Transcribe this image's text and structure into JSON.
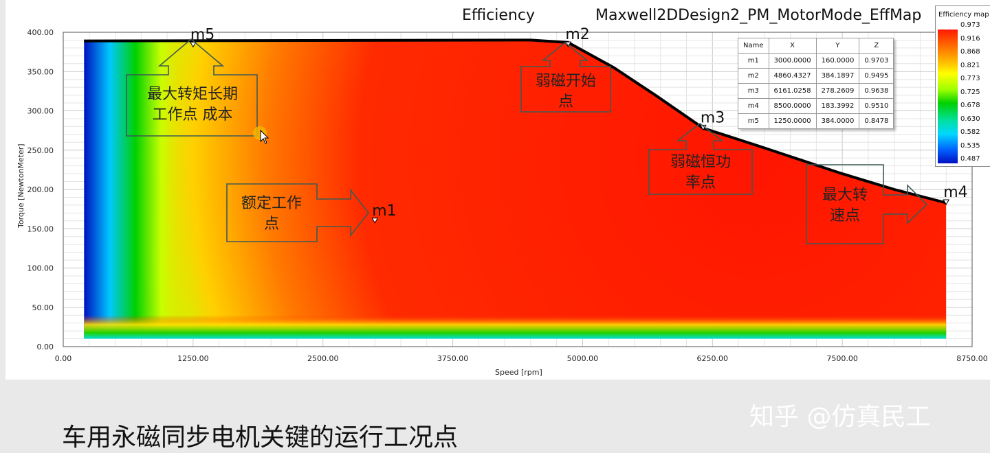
{
  "chart_data": {
    "type": "heatmap",
    "title": "Efficiency",
    "design_title": "Maxwell2DDesign2_PM_MotorMode_EffMap",
    "xlabel": "Speed [rpm]",
    "ylabel": "Torque [NewtonMeter]",
    "xlim": [
      0,
      8750
    ],
    "ylim": [
      0,
      400
    ],
    "x_ticks": [
      "0.00",
      "1250.00",
      "2500.00",
      "3750.00",
      "5000.00",
      "6250.00",
      "7500.00",
      "8750.00"
    ],
    "y_ticks": [
      "0.00",
      "50.00",
      "100.00",
      "150.00",
      "200.00",
      "250.00",
      "300.00",
      "350.00",
      "400.00"
    ],
    "grid": true,
    "envelope": [
      [
        200,
        389
      ],
      [
        4500,
        390
      ],
      [
        4860,
        387
      ],
      [
        5300,
        355
      ],
      [
        5700,
        320
      ],
      [
        6161,
        278
      ],
      [
        6700,
        255
      ],
      [
        7500,
        220
      ],
      [
        8000,
        200
      ],
      [
        8500,
        183
      ]
    ],
    "colorbar": {
      "title": "Efficiency map",
      "values": [
        "0.973",
        "0.916",
        "0.868",
        "0.821",
        "0.773",
        "0.725",
        "0.678",
        "0.630",
        "0.582",
        "0.535",
        "0.487"
      ]
    },
    "markers": [
      {
        "name": "m1",
        "x": 3000,
        "y": 160
      },
      {
        "name": "m2",
        "x": 4860.4327,
        "y": 384.1897
      },
      {
        "name": "m3",
        "x": 6161.0258,
        "y": 278.2609
      },
      {
        "name": "m4",
        "x": 8500,
        "y": 183.3992
      },
      {
        "name": "m5",
        "x": 1250,
        "y": 384
      }
    ],
    "marker_table": {
      "headers": [
        "Name",
        "X",
        "Y",
        "Z"
      ],
      "rows": [
        [
          "m1",
          "3000.0000",
          "160.0000",
          "0.9703"
        ],
        [
          "m2",
          "4860.4327",
          "384.1897",
          "0.9495"
        ],
        [
          "m3",
          "6161.0258",
          "278.2609",
          "0.9638"
        ],
        [
          "m4",
          "8500.0000",
          "183.3992",
          "0.9510"
        ],
        [
          "m5",
          "1250.0000",
          "384.0000",
          "0.8478"
        ]
      ]
    }
  },
  "annotations": {
    "m5_note": [
      "最大转矩长期",
      "工作点 成本"
    ],
    "m1_note": [
      "额定工作",
      "点"
    ],
    "m2_note": [
      "弱磁开始",
      "点"
    ],
    "m3_note": [
      "弱磁恒功",
      "率点"
    ],
    "m4_note": [
      "最大转",
      "速点"
    ]
  },
  "caption": "车用永磁同步电机关键的运行工况点",
  "watermark": "知乎 @仿真民工"
}
